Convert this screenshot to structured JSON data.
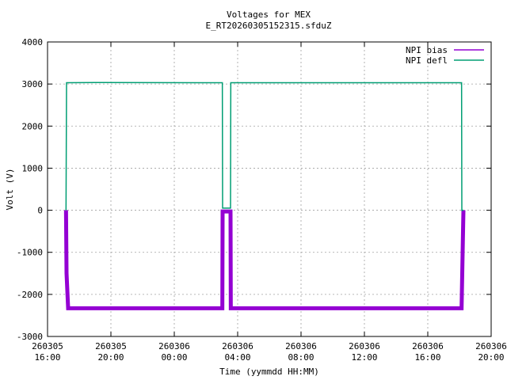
{
  "chart_data": {
    "type": "line",
    "title": "Voltages for MEX",
    "subtitle": "E_RT20260305152315.sfduZ",
    "x_label": "Time (yymmdd HH:MM)",
    "y_label": "Volt (V)",
    "xlim": [
      "260305 16:00",
      "260306 20:00"
    ],
    "xticks": [
      "260305 16:00",
      "260305 20:00",
      "260306 00:00",
      "260306 04:00",
      "260306 08:00",
      "260306 12:00",
      "260306 16:00",
      "260306 20:00"
    ],
    "ylim": [
      -3000,
      4000
    ],
    "yticks": [
      -3000,
      -2000,
      -1000,
      0,
      1000,
      2000,
      3000,
      4000
    ],
    "grid": true,
    "legend": "top-right",
    "series": [
      {
        "name": "NPI bias",
        "color": "#9400d3",
        "x": [
          "260305 17:10",
          "260305 17:12",
          "260305 17:18",
          "260306 03:02",
          "260306 03:03",
          "260306 03:33",
          "260306 03:34",
          "260306 18:08",
          "260306 18:15"
        ],
        "values": [
          0,
          -1500,
          -2330,
          -2330,
          -30,
          -30,
          -2330,
          -2330,
          0
        ]
      },
      {
        "name": "NPI defl",
        "color": "#009e73",
        "x": [
          "260305 17:10",
          "260305 17:12",
          "260305 19:00",
          "260306 03:02",
          "260306 03:03",
          "260306 03:33",
          "260306 03:34",
          "260306 18:08",
          "260306 18:09",
          "260306 18:15"
        ],
        "values": [
          0,
          3030,
          3035,
          3030,
          50,
          50,
          3030,
          3030,
          0,
          0
        ]
      }
    ]
  }
}
